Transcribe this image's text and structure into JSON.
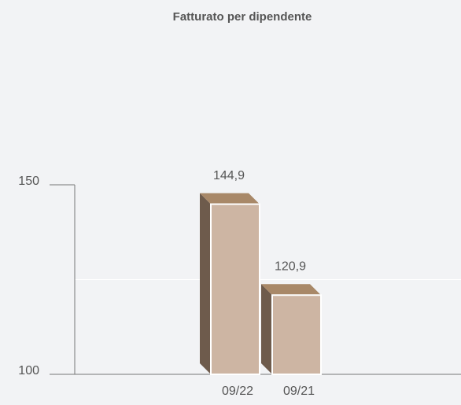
{
  "chart_data": {
    "type": "bar3d",
    "title": "Fatturato per dipendente",
    "categories": [
      "09/22",
      "09/21"
    ],
    "values": [
      144.9,
      120.9
    ],
    "value_labels": [
      "144,9",
      "120,9"
    ],
    "colors": {
      "front": "#cdb5a3",
      "top": "#a88868",
      "side": "#6e5b4c"
    },
    "ylim": [
      100,
      150
    ],
    "yticks": [
      100,
      150
    ],
    "minor_yticks": [
      125
    ],
    "grid": true
  }
}
